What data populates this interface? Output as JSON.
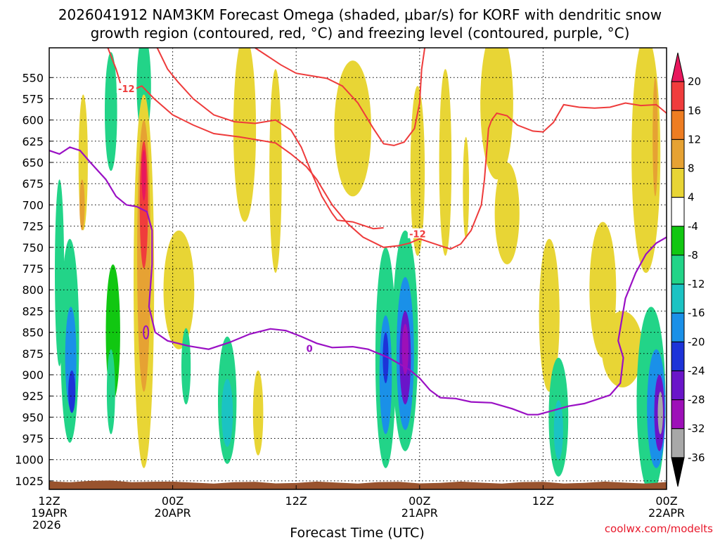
{
  "chart_data": {
    "type": "heatmap",
    "title_lines": [
      "2026041912 NAM3KM Forecast Omega (shaded, μbar/s) for KORF with dendritic snow",
      "growth region (contoured, red, °C) and freezing level (contoured, purple, °C)"
    ],
    "xlabel": "Forecast Time (UTC)",
    "credit": "coolwx.com/modelts",
    "x_range_hours": [
      0,
      60
    ],
    "y_range_hpa": [
      515,
      1035
    ],
    "y_ticks": [
      "550",
      "575",
      "600",
      "625",
      "650",
      "675",
      "700",
      "725",
      "750",
      "775",
      "800",
      "825",
      "850",
      "875",
      "900",
      "925",
      "950",
      "975",
      "1000",
      "1025"
    ],
    "x_ticks": [
      {
        "hour": 0,
        "line1": "12Z",
        "line2": "19APR",
        "line3": "2026"
      },
      {
        "hour": 12,
        "line1": "00Z",
        "line2": "20APR",
        "line3": ""
      },
      {
        "hour": 24,
        "line1": "12Z",
        "line2": "",
        "line3": ""
      },
      {
        "hour": 36,
        "line1": "00Z",
        "line2": "21APR",
        "line3": ""
      },
      {
        "hour": 48,
        "line1": "12Z",
        "line2": "",
        "line3": ""
      },
      {
        "hour": 60,
        "line1": "00Z",
        "line2": "22APR",
        "line3": ""
      }
    ],
    "colorbar": {
      "labels": [
        "20",
        "16",
        "12",
        "8",
        "4",
        "-4",
        "-8",
        "-12",
        "-16",
        "-20",
        "-24",
        "-28",
        "-32",
        "-36"
      ],
      "colors": [
        "#e8175d",
        "#f03c3c",
        "#ee7d22",
        "#e6a233",
        "#e8d535",
        "#ffffff",
        "#11c711",
        "#22d488",
        "#1bc3c3",
        "#1a90e8",
        "#1d33d8",
        "#6a15c9",
        "#9d10b8",
        "#a8a8a8",
        "#000000"
      ]
    },
    "omega_blobs": [
      {
        "t": 1.0,
        "p": 780,
        "dt": 0.45,
        "dp": 110,
        "value": -10
      },
      {
        "t": 2.0,
        "p": 860,
        "dt": 0.9,
        "dp": 120,
        "value": -8
      },
      {
        "t": 2.1,
        "p": 880,
        "dt": 0.55,
        "dp": 60,
        "value": -16
      },
      {
        "t": 2.2,
        "p": 920,
        "dt": 0.35,
        "dp": 25,
        "value": -21
      },
      {
        "t": 3.3,
        "p": 650,
        "dt": 0.45,
        "dp": 80,
        "value": 7
      },
      {
        "t": 3.2,
        "p": 700,
        "dt": 0.25,
        "dp": 30,
        "value": 10
      },
      {
        "t": 6.0,
        "p": 590,
        "dt": 0.6,
        "dp": 70,
        "value": -8
      },
      {
        "t": 6.2,
        "p": 850,
        "dt": 0.7,
        "dp": 80,
        "value": -6
      },
      {
        "t": 6.0,
        "p": 920,
        "dt": 0.4,
        "dp": 50,
        "value": -8
      },
      {
        "t": 9.2,
        "p": 560,
        "dt": 0.7,
        "dp": 60,
        "value": -8
      },
      {
        "t": 9.2,
        "p": 550,
        "dt": 0.3,
        "dp": 20,
        "value": -11
      },
      {
        "t": 9.2,
        "p": 790,
        "dt": 1.0,
        "dp": 220,
        "value": 6
      },
      {
        "t": 9.2,
        "p": 760,
        "dt": 0.65,
        "dp": 160,
        "value": 10
      },
      {
        "t": 9.2,
        "p": 700,
        "dt": 0.4,
        "dp": 75,
        "value": 17
      },
      {
        "t": 9.2,
        "p": 665,
        "dt": 0.22,
        "dp": 30,
        "value": 22
      },
      {
        "t": 12.6,
        "p": 800,
        "dt": 1.5,
        "dp": 70,
        "value": 5
      },
      {
        "t": 13.3,
        "p": 890,
        "dt": 0.45,
        "dp": 45,
        "value": -8
      },
      {
        "t": 17.3,
        "p": 930,
        "dt": 0.9,
        "dp": 75,
        "value": -8
      },
      {
        "t": 17.3,
        "p": 945,
        "dt": 0.55,
        "dp": 40,
        "value": -14
      },
      {
        "t": 20.3,
        "p": 945,
        "dt": 0.5,
        "dp": 50,
        "value": 5
      },
      {
        "t": 19.0,
        "p": 610,
        "dt": 1.1,
        "dp": 110,
        "value": 5
      },
      {
        "t": 22.0,
        "p": 660,
        "dt": 0.6,
        "dp": 120,
        "value": 5
      },
      {
        "t": 29.5,
        "p": 610,
        "dt": 1.8,
        "dp": 80,
        "value": 5
      },
      {
        "t": 32.7,
        "p": 880,
        "dt": 1.0,
        "dp": 130,
        "value": -10
      },
      {
        "t": 32.7,
        "p": 900,
        "dt": 0.6,
        "dp": 70,
        "value": -18
      },
      {
        "t": 32.7,
        "p": 880,
        "dt": 0.28,
        "dp": 30,
        "value": -22
      },
      {
        "t": 34.6,
        "p": 860,
        "dt": 1.25,
        "dp": 130,
        "value": -9
      },
      {
        "t": 34.6,
        "p": 875,
        "dt": 0.85,
        "dp": 90,
        "value": -16
      },
      {
        "t": 34.6,
        "p": 880,
        "dt": 0.55,
        "dp": 55,
        "value": -24
      },
      {
        "t": 34.6,
        "p": 870,
        "dt": 0.32,
        "dp": 30,
        "value": -28
      },
      {
        "t": 35.8,
        "p": 660,
        "dt": 0.7,
        "dp": 100,
        "value": 5
      },
      {
        "t": 38.5,
        "p": 650,
        "dt": 0.6,
        "dp": 110,
        "value": 5
      },
      {
        "t": 40.5,
        "p": 680,
        "dt": 0.3,
        "dp": 60,
        "value": 5
      },
      {
        "t": 43.5,
        "p": 580,
        "dt": 1.6,
        "dp": 90,
        "value": 5
      },
      {
        "t": 44.5,
        "p": 710,
        "dt": 1.2,
        "dp": 60,
        "value": 5
      },
      {
        "t": 48.6,
        "p": 830,
        "dt": 1.0,
        "dp": 90,
        "value": 5
      },
      {
        "t": 49.5,
        "p": 950,
        "dt": 0.95,
        "dp": 70,
        "value": -8
      },
      {
        "t": 49.5,
        "p": 965,
        "dt": 0.45,
        "dp": 35,
        "value": -12
      },
      {
        "t": 53.8,
        "p": 800,
        "dt": 1.3,
        "dp": 80,
        "value": 5
      },
      {
        "t": 55.7,
        "p": 870,
        "dt": 2.0,
        "dp": 45,
        "value": 5
      },
      {
        "t": 58.0,
        "p": 640,
        "dt": 1.4,
        "dp": 140,
        "value": 5
      },
      {
        "t": 58.9,
        "p": 620,
        "dt": 0.25,
        "dp": 70,
        "value": 11
      },
      {
        "t": 58.5,
        "p": 930,
        "dt": 1.4,
        "dp": 110,
        "value": -9
      },
      {
        "t": 59.0,
        "p": 940,
        "dt": 0.9,
        "dp": 70,
        "value": -17
      },
      {
        "t": 59.3,
        "p": 945,
        "dt": 0.5,
        "dp": 45,
        "value": -27
      },
      {
        "t": 59.4,
        "p": 945,
        "dt": 0.25,
        "dp": 25,
        "value": -33
      }
    ],
    "dendritic_contours": [
      {
        "label": "-12",
        "label_at": [
          7.5,
          564
        ],
        "points": [
          [
            5.7,
            515
          ],
          [
            6.5,
            540
          ],
          [
            7.0,
            560
          ],
          [
            8.0,
            565
          ],
          [
            9.0,
            560
          ],
          [
            10.2,
            575
          ],
          [
            12.0,
            594
          ],
          [
            14.0,
            606
          ],
          [
            16.0,
            616
          ],
          [
            18.5,
            620
          ],
          [
            22.0,
            627
          ],
          [
            23.5,
            640
          ],
          [
            25.0,
            655
          ],
          [
            26.0,
            670
          ],
          [
            27.5,
            700
          ],
          [
            29.0,
            722
          ],
          [
            30.5,
            738
          ],
          [
            32.5,
            750
          ],
          [
            34.0,
            748
          ],
          [
            35.0,
            745
          ],
          [
            36.0,
            740
          ],
          [
            38.0,
            748
          ],
          [
            39.0,
            752
          ],
          [
            40.0,
            746
          ],
          [
            41.0,
            730
          ],
          [
            42.0,
            700
          ],
          [
            42.3,
            670
          ],
          [
            42.5,
            640
          ],
          [
            42.7,
            610
          ],
          [
            43.0,
            600
          ],
          [
            43.5,
            592
          ],
          [
            44.5,
            595
          ],
          [
            45.5,
            606
          ],
          [
            47.0,
            613
          ],
          [
            48.0,
            614
          ],
          [
            49.0,
            603
          ],
          [
            50.0,
            582
          ],
          [
            51.5,
            585
          ],
          [
            53.0,
            586
          ],
          [
            54.5,
            585
          ],
          [
            56.0,
            580
          ],
          [
            57.5,
            583
          ],
          [
            59.0,
            582
          ],
          [
            60.0,
            592
          ]
        ]
      },
      {
        "label": "-12",
        "label_at": [
          35.8,
          735
        ],
        "points": [
          [
            10.5,
            515
          ],
          [
            11.5,
            540
          ],
          [
            12.5,
            555
          ],
          [
            14.0,
            575
          ],
          [
            16.0,
            594
          ],
          [
            18.0,
            602
          ],
          [
            20.0,
            604
          ],
          [
            22.0,
            600
          ],
          [
            23.5,
            612
          ],
          [
            24.5,
            632
          ],
          [
            25.5,
            662
          ],
          [
            26.5,
            690
          ],
          [
            27.5,
            710
          ],
          [
            28.0,
            718
          ],
          [
            29.5,
            720
          ],
          [
            30.5,
            724
          ],
          [
            31.5,
            728
          ],
          [
            32.5,
            727
          ]
        ]
      },
      {
        "label": "",
        "label_at": null,
        "points": [
          [
            20.0,
            515
          ],
          [
            22.5,
            535
          ],
          [
            24.0,
            545
          ],
          [
            25.5,
            548
          ],
          [
            27.0,
            551
          ],
          [
            28.5,
            560
          ],
          [
            30.0,
            580
          ],
          [
            31.5,
            610
          ],
          [
            32.5,
            628
          ],
          [
            33.5,
            630
          ],
          [
            34.5,
            626
          ],
          [
            35.5,
            610
          ],
          [
            36.0,
            580
          ],
          [
            36.2,
            540
          ],
          [
            36.5,
            515
          ]
        ]
      }
    ],
    "freezing_level": {
      "label": "0",
      "label_at": [
        25.3,
        870
      ],
      "points": [
        [
          0.0,
          636
        ],
        [
          1.0,
          640
        ],
        [
          2.0,
          632
        ],
        [
          3.0,
          636
        ],
        [
          4.0,
          650
        ],
        [
          5.5,
          670
        ],
        [
          6.5,
          690
        ],
        [
          7.5,
          700
        ],
        [
          8.5,
          702
        ],
        [
          9.5,
          708
        ],
        [
          10.0,
          730
        ],
        [
          10.0,
          770
        ],
        [
          9.7,
          820
        ],
        [
          10.3,
          850
        ],
        [
          11.5,
          860
        ],
        [
          13.5,
          866
        ],
        [
          15.5,
          870
        ],
        [
          17.5,
          862
        ],
        [
          19.5,
          852
        ],
        [
          21.5,
          846
        ],
        [
          23.0,
          848
        ],
        [
          24.5,
          855
        ],
        [
          26.0,
          863
        ],
        [
          27.5,
          868
        ],
        [
          29.5,
          867
        ],
        [
          31.0,
          870
        ],
        [
          33.0,
          880
        ],
        [
          35.0,
          894
        ],
        [
          36.0,
          904
        ],
        [
          37.0,
          918
        ],
        [
          38.0,
          927
        ],
        [
          39.5,
          928
        ],
        [
          41.0,
          932
        ],
        [
          43.0,
          933
        ],
        [
          45.0,
          940
        ],
        [
          46.5,
          947
        ],
        [
          47.5,
          947
        ],
        [
          49.0,
          942
        ],
        [
          50.5,
          937
        ],
        [
          52.0,
          934
        ],
        [
          54.5,
          924
        ],
        [
          55.5,
          910
        ],
        [
          55.8,
          880
        ],
        [
          55.3,
          860
        ],
        [
          56.0,
          810
        ],
        [
          57.0,
          780
        ],
        [
          58.0,
          758
        ],
        [
          59.0,
          745
        ],
        [
          60.0,
          738
        ]
      ],
      "small_loops": [
        [
          9.4,
          850
        ]
      ]
    }
  }
}
